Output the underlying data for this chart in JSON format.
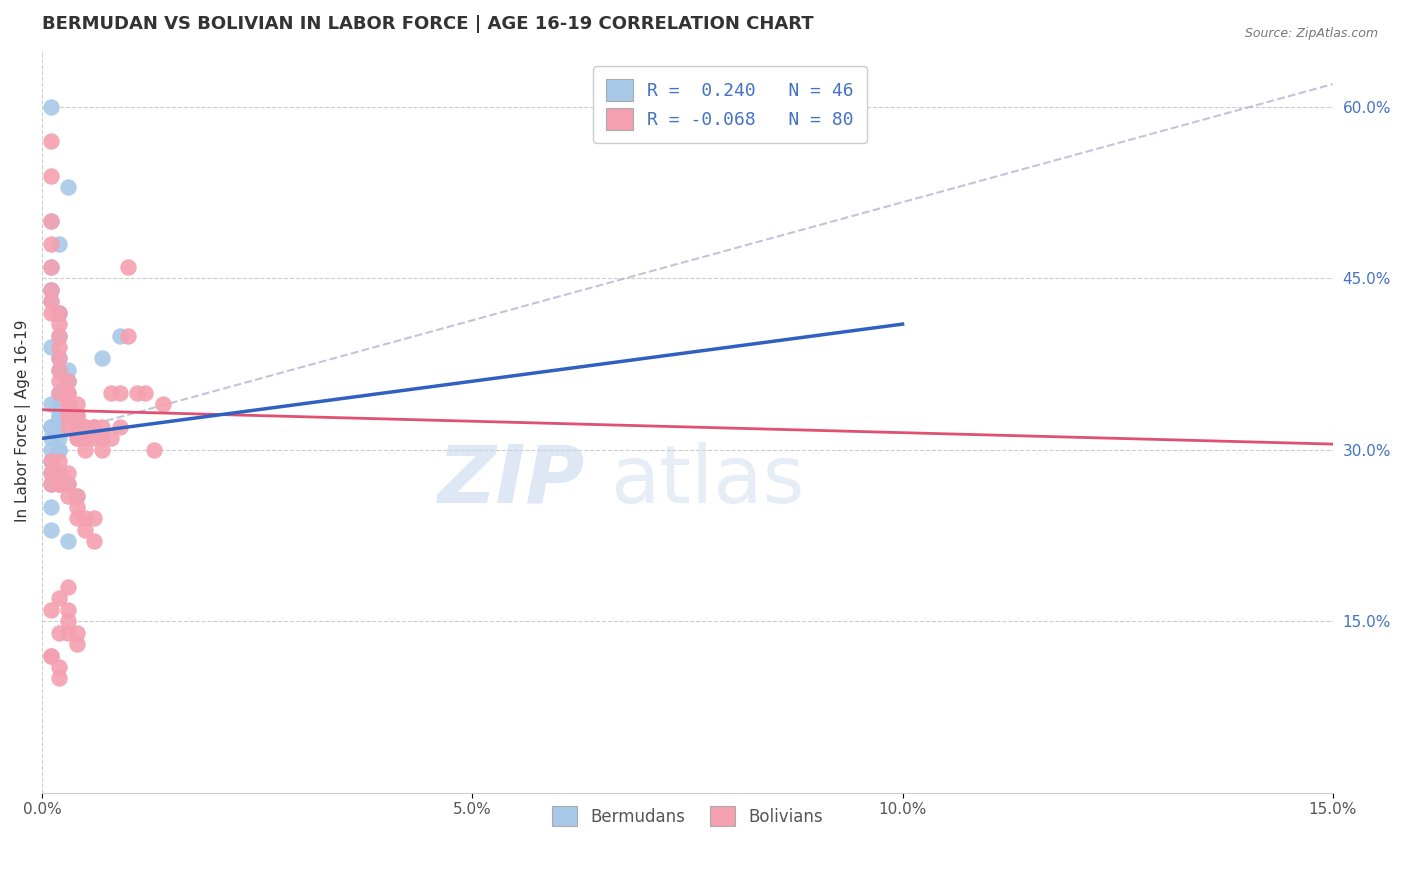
{
  "title": "BERMUDAN VS BOLIVIAN IN LABOR FORCE | AGE 16-19 CORRELATION CHART",
  "source": "Source: ZipAtlas.com",
  "ylabel": "In Labor Force | Age 16-19",
  "xlim": [
    0.0,
    0.15
  ],
  "ylim": [
    0.0,
    0.65
  ],
  "xticks": [
    0.0,
    0.05,
    0.1,
    0.15
  ],
  "xtick_labels": [
    "0.0%",
    "5.0%",
    "10.0%",
    "15.0%"
  ],
  "yticks_right": [
    0.15,
    0.3,
    0.45,
    0.6
  ],
  "ytick_labels_right": [
    "15.0%",
    "30.0%",
    "45.0%",
    "60.0%"
  ],
  "legend_R_blue": "0.240",
  "legend_N_blue": "46",
  "legend_R_pink": "-0.068",
  "legend_N_pink": "80",
  "blue_color": "#a8c8e8",
  "pink_color": "#f4a0b0",
  "blue_line_color": "#3060c0",
  "pink_line_color": "#e05070",
  "title_fontsize": 13,
  "label_fontsize": 11,
  "tick_fontsize": 11,
  "blue_x": [
    0.001,
    0.003,
    0.001,
    0.002,
    0.001,
    0.001,
    0.001,
    0.001,
    0.002,
    0.002,
    0.002,
    0.001,
    0.002,
    0.002,
    0.003,
    0.003,
    0.003,
    0.002,
    0.002,
    0.001,
    0.002,
    0.003,
    0.002,
    0.004,
    0.003,
    0.002,
    0.001,
    0.001,
    0.002,
    0.001,
    0.001,
    0.002,
    0.002,
    0.001,
    0.002,
    0.001,
    0.001,
    0.002,
    0.001,
    0.003,
    0.004,
    0.001,
    0.001,
    0.003,
    0.007,
    0.009
  ],
  "blue_y": [
    0.6,
    0.53,
    0.5,
    0.48,
    0.46,
    0.44,
    0.44,
    0.43,
    0.42,
    0.42,
    0.4,
    0.39,
    0.38,
    0.37,
    0.37,
    0.36,
    0.36,
    0.35,
    0.35,
    0.34,
    0.34,
    0.34,
    0.33,
    0.33,
    0.33,
    0.33,
    0.32,
    0.32,
    0.32,
    0.32,
    0.31,
    0.31,
    0.3,
    0.3,
    0.3,
    0.29,
    0.28,
    0.28,
    0.27,
    0.27,
    0.26,
    0.25,
    0.23,
    0.22,
    0.38,
    0.4
  ],
  "pink_x": [
    0.001,
    0.001,
    0.001,
    0.001,
    0.001,
    0.001,
    0.001,
    0.001,
    0.002,
    0.002,
    0.002,
    0.002,
    0.002,
    0.002,
    0.002,
    0.002,
    0.003,
    0.003,
    0.003,
    0.003,
    0.003,
    0.003,
    0.003,
    0.003,
    0.004,
    0.004,
    0.004,
    0.004,
    0.004,
    0.004,
    0.005,
    0.005,
    0.005,
    0.005,
    0.006,
    0.006,
    0.006,
    0.007,
    0.007,
    0.007,
    0.008,
    0.008,
    0.009,
    0.009,
    0.01,
    0.01,
    0.011,
    0.012,
    0.013,
    0.014,
    0.001,
    0.001,
    0.001,
    0.002,
    0.002,
    0.002,
    0.002,
    0.003,
    0.003,
    0.003,
    0.004,
    0.004,
    0.004,
    0.005,
    0.005,
    0.006,
    0.006,
    0.003,
    0.002,
    0.001,
    0.002,
    0.003,
    0.004,
    0.001,
    0.001,
    0.002,
    0.002,
    0.003,
    0.003,
    0.004
  ],
  "pink_y": [
    0.57,
    0.54,
    0.5,
    0.48,
    0.46,
    0.44,
    0.43,
    0.42,
    0.42,
    0.41,
    0.4,
    0.39,
    0.38,
    0.37,
    0.36,
    0.35,
    0.36,
    0.35,
    0.35,
    0.34,
    0.34,
    0.33,
    0.33,
    0.32,
    0.34,
    0.33,
    0.33,
    0.32,
    0.31,
    0.31,
    0.32,
    0.32,
    0.31,
    0.3,
    0.32,
    0.32,
    0.31,
    0.32,
    0.31,
    0.3,
    0.35,
    0.31,
    0.35,
    0.32,
    0.46,
    0.4,
    0.35,
    0.35,
    0.3,
    0.34,
    0.29,
    0.28,
    0.27,
    0.29,
    0.28,
    0.27,
    0.27,
    0.28,
    0.27,
    0.26,
    0.26,
    0.25,
    0.24,
    0.24,
    0.23,
    0.24,
    0.22,
    0.18,
    0.17,
    0.16,
    0.14,
    0.14,
    0.13,
    0.12,
    0.12,
    0.11,
    0.1,
    0.15,
    0.16,
    0.14
  ],
  "blue_line_x0": 0.0,
  "blue_line_x1": 0.1,
  "blue_line_y0": 0.31,
  "blue_line_y1": 0.41,
  "pink_line_x0": 0.0,
  "pink_line_x1": 0.15,
  "pink_line_y0": 0.335,
  "pink_line_y1": 0.305,
  "dash_line_x0": 0.0,
  "dash_line_x1": 0.15,
  "dash_line_y0": 0.31,
  "dash_line_y1": 0.62
}
